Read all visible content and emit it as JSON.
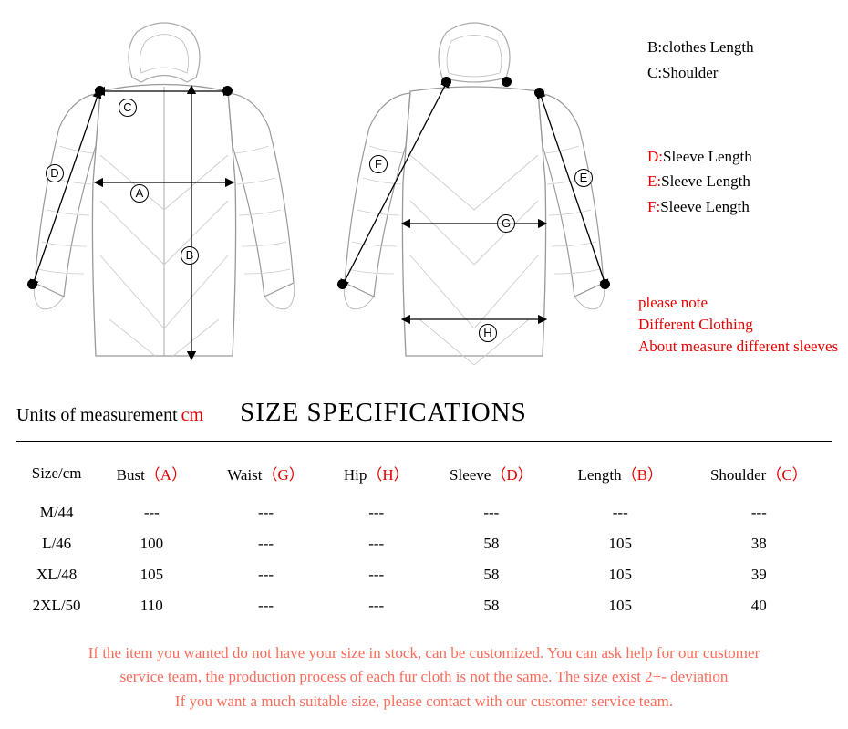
{
  "legend": {
    "b_key": "B:",
    "b_val": "clothes Length",
    "c_key": "C:",
    "c_val": "Shoulder",
    "d_key": "D:",
    "d_val": "Sleeve Length",
    "e_key": "E:",
    "e_val": "Sleeve Length",
    "f_key": "F:",
    "f_val": "Sleeve Length"
  },
  "note": {
    "l1": "please note",
    "l2": "Different Clothing",
    "l3": "About measure different sleeves"
  },
  "units_label": "Units of measurement",
  "units_unit": "cm",
  "spec_title": "SIZE SPECIFICATIONS",
  "table": {
    "columns": [
      {
        "label": "Size/cm",
        "ref": ""
      },
      {
        "label": "Bust",
        "ref": "（A）"
      },
      {
        "label": "Waist",
        "ref": "（G）"
      },
      {
        "label": "Hip",
        "ref": "（H）"
      },
      {
        "label": "Sleeve",
        "ref": "（D）"
      },
      {
        "label": "Length",
        "ref": "（B）"
      },
      {
        "label": "Shoulder",
        "ref": "（C）"
      }
    ],
    "rows": [
      [
        "M/44",
        "---",
        "---",
        "---",
        "---",
        "---",
        "---"
      ],
      [
        "L/46",
        "100",
        "---",
        "---",
        "58",
        "105",
        "38"
      ],
      [
        "XL/48",
        "105",
        "---",
        "---",
        "58",
        "105",
        "39"
      ],
      [
        "2XL/50",
        "110",
        "---",
        "---",
        "58",
        "105",
        "40"
      ]
    ]
  },
  "footer": {
    "l1": "If the item you wanted do not have your size in stock, can be customized. You can ask help for our customer",
    "l2": "service team, the production process of each fur cloth is not the same. The size exist 2+- deviation",
    "l3": "If you want a much suitable size, please contact with our customer service team."
  },
  "markers_front": {
    "A": "A",
    "B": "B",
    "C": "C",
    "D": "D"
  },
  "markers_back": {
    "E": "E",
    "F": "F",
    "G": "G",
    "H": "H"
  },
  "colors": {
    "red": "#e60000",
    "footer": "#ff6b5a",
    "line": "#999999"
  }
}
